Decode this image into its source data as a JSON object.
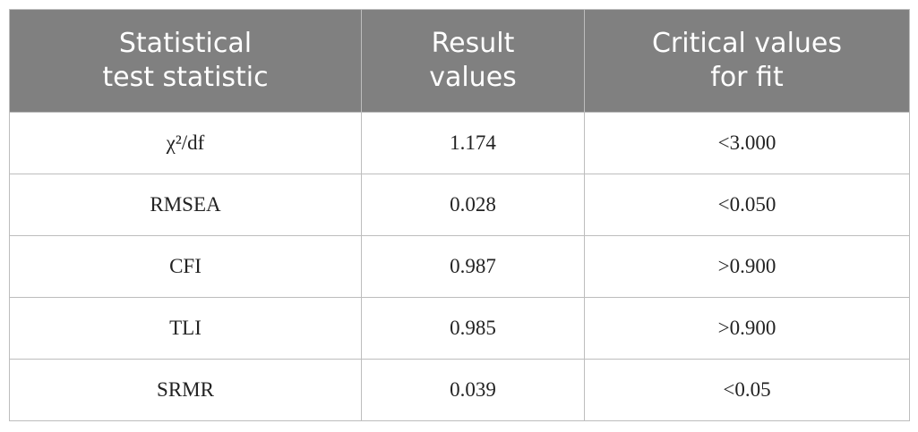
{
  "table": {
    "header": [
      [
        "Statistical",
        "test statistic"
      ],
      [
        "Result",
        "values"
      ],
      [
        "Critical values",
        "for fit"
      ]
    ],
    "rows": [
      [
        "χ²/df",
        "1.174",
        "<3.000"
      ],
      [
        "RMSEA",
        "0.028",
        "<0.050"
      ],
      [
        "CFI",
        "0.987",
        ">0.900"
      ],
      [
        "TLI",
        "0.985",
        ">0.900"
      ],
      [
        "SRMR",
        "0.039",
        "<0.05"
      ]
    ]
  }
}
